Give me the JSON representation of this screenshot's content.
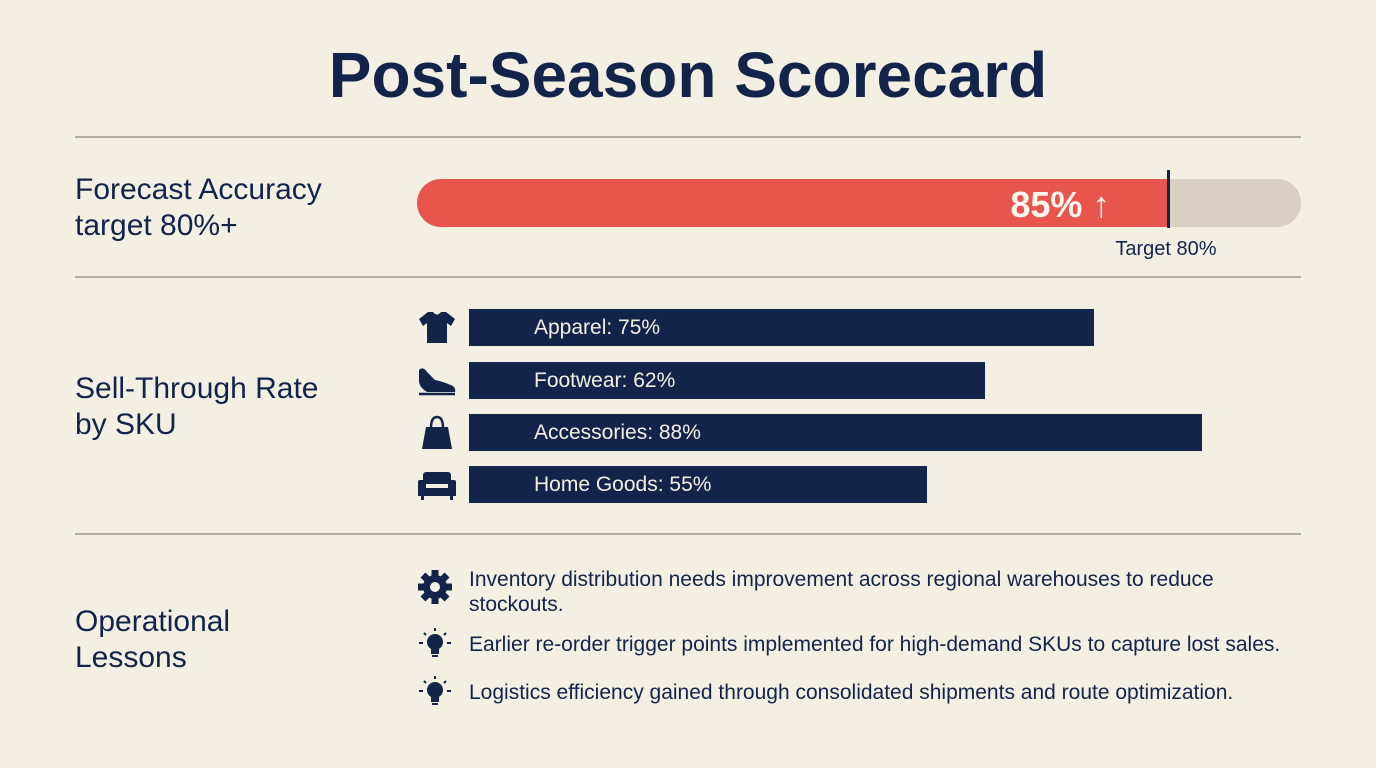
{
  "title": "Post-Season Scorecard",
  "forecast": {
    "label_line1": "Forecast Accuracy",
    "label_line2": "target 80%+",
    "value_text": "85% ↑",
    "target_text": "Target 80%",
    "fill_color": "#e8554d"
  },
  "sell_through": {
    "label_line1": "Sell-Through Rate",
    "label_line2": "by SKU",
    "bar_color": "#13244a",
    "items": [
      {
        "label": "Apparel: 75%",
        "icon": "t-shirt-icon"
      },
      {
        "label": "Footwear: 62%",
        "icon": "shoe-icon"
      },
      {
        "label": "Accessories: 88%",
        "icon": "handbag-icon"
      },
      {
        "label": "Home Goods: 55%",
        "icon": "sofa-icon"
      }
    ]
  },
  "lessons": {
    "label_line1": "Operational",
    "label_line2": "Lessons",
    "items": [
      {
        "text": "Inventory distribution needs improvement across regional warehouses to reduce stockouts.",
        "icon": "gear-icon"
      },
      {
        "text": "Earlier re-order trigger points implemented for high-demand SKUs to capture lost sales.",
        "icon": "lightbulb-icon"
      },
      {
        "text": "Logistics efficiency gained through consolidated shipments and route optimization.",
        "icon": "lightbulb-icon"
      }
    ]
  },
  "chart_data": [
    {
      "type": "bar",
      "title": "Forecast Accuracy",
      "categories": [
        "Forecast Accuracy"
      ],
      "values": [
        85
      ],
      "target": 80,
      "xlim": [
        0,
        100
      ]
    },
    {
      "type": "bar",
      "title": "Sell-Through Rate by SKU",
      "categories": [
        "Apparel",
        "Footwear",
        "Accessories",
        "Home Goods"
      ],
      "values": [
        75,
        62,
        88,
        55
      ],
      "xlim": [
        0,
        100
      ]
    }
  ]
}
